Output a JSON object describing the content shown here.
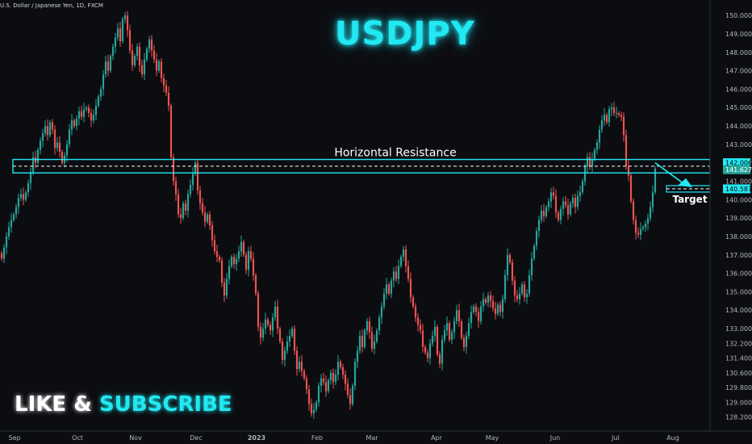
{
  "header": {
    "symbol_line": "U.S. Dollar / Japanese Yen, 1D, FXCM"
  },
  "brand": {
    "title": "USDJPY",
    "cta_like": "LIKE &",
    "cta_subscribe": "SUBSCRIBE"
  },
  "colors": {
    "background": "#0c0d11",
    "up": "#26a69a",
    "down": "#ef5350",
    "accent": "#22e8f2",
    "axis_text": "#b2b5be"
  },
  "chart_data": {
    "type": "candlestick",
    "ylim": [
      127.7,
      150.4
    ],
    "y_ticks": [
      150.0,
      149.0,
      148.0,
      147.0,
      146.0,
      145.0,
      144.0,
      143.0,
      142.0,
      141.0,
      140.0,
      139.0,
      138.0,
      137.0,
      136.0,
      135.0,
      134.0,
      133.0,
      132.2,
      131.4,
      130.6,
      129.8,
      129.0,
      128.2
    ],
    "x_ticks": [
      "Sep",
      "Oct",
      "Nov",
      "Dec",
      "2023",
      "Feb",
      "Mar",
      "Apr",
      "May",
      "Jun",
      "Jul",
      "Aug"
    ],
    "price_labels": {
      "upper": "142.006",
      "lower": "141.627",
      "target": "140.587"
    },
    "annotations": {
      "resistance_label": "Horizontal Resistance",
      "target_label": "Target"
    },
    "levels": {
      "zone_top": 142.006,
      "zone_bottom": 141.627,
      "target": 140.587
    },
    "closes": [
      136.8,
      137.4,
      138.0,
      138.5,
      138.9,
      139.2,
      139.6,
      140.1,
      140.3,
      140.0,
      140.4,
      140.9,
      141.5,
      142.3,
      142.0,
      142.7,
      143.2,
      143.6,
      144.0,
      143.5,
      144.2,
      143.8,
      142.8,
      143.1,
      142.6,
      142.0,
      142.4,
      143.0,
      143.8,
      144.3,
      144.0,
      144.4,
      144.8,
      144.5,
      144.9,
      145.0,
      144.7,
      144.3,
      144.6,
      145.1,
      145.6,
      146.0,
      146.8,
      147.5,
      147.0,
      147.8,
      148.3,
      148.8,
      149.3,
      148.6,
      149.8,
      150.0,
      149.2,
      148.1,
      147.3,
      147.8,
      148.3,
      147.3,
      146.8,
      147.6,
      148.2,
      148.7,
      148.1,
      147.6,
      147.0,
      147.5,
      146.6,
      146.2,
      145.8,
      145.1,
      142.3,
      141.0,
      140.3,
      139.2,
      139.0,
      139.8,
      139.4,
      140.3,
      140.8,
      141.4,
      142.0,
      140.5,
      139.8,
      139.3,
      138.8,
      139.2,
      138.6,
      137.8,
      137.2,
      136.9,
      136.7,
      135.5,
      134.8,
      135.7,
      136.4,
      136.9,
      136.5,
      136.8,
      137.2,
      137.7,
      137.0,
      136.2,
      137.2,
      136.8,
      135.9,
      134.9,
      133.1,
      132.5,
      133.0,
      133.5,
      133.2,
      132.9,
      133.6,
      134.2,
      133.0,
      132.3,
      131.3,
      131.8,
      132.3,
      132.6,
      133.0,
      131.8,
      130.8,
      131.2,
      130.7,
      130.3,
      129.7,
      128.9,
      128.4,
      128.6,
      129.0,
      129.9,
      130.3,
      130.1,
      129.6,
      130.2,
      130.6,
      130.1,
      130.5,
      131.2,
      130.9,
      130.5,
      130.0,
      129.4,
      128.9,
      129.9,
      131.2,
      131.8,
      132.6,
      132.0,
      132.9,
      133.4,
      132.8,
      131.9,
      132.3,
      132.9,
      133.6,
      134.2,
      134.9,
      135.4,
      134.9,
      135.6,
      136.1,
      135.7,
      136.4,
      136.9,
      137.3,
      136.4,
      135.7,
      134.7,
      134.2,
      133.6,
      133.2,
      132.9,
      132.0,
      131.7,
      131.4,
      132.2,
      132.6,
      133.1,
      131.6,
      131.1,
      132.4,
      132.9,
      133.3,
      132.4,
      132.8,
      133.4,
      134.0,
      133.4,
      132.5,
      132.0,
      132.6,
      133.3,
      133.9,
      134.2,
      133.9,
      133.4,
      134.2,
      134.6,
      134.4,
      134.8,
      134.5,
      134.1,
      133.8,
      134.3,
      133.9,
      134.6,
      135.9,
      137.0,
      136.6,
      135.6,
      134.8,
      134.6,
      134.9,
      135.4,
      134.7,
      134.9,
      135.9,
      136.8,
      137.5,
      138.3,
      138.9,
      139.4,
      139.1,
      139.6,
      139.9,
      140.4,
      140.2,
      139.3,
      138.9,
      139.5,
      139.9,
      139.7,
      139.2,
      139.8,
      140.1,
      139.6,
      140.2,
      140.4,
      141.0,
      141.8,
      142.3,
      141.8,
      142.2,
      142.7,
      143.1,
      143.8,
      144.3,
      144.6,
      144.2,
      144.9,
      145.0,
      144.7,
      144.7,
      144.6,
      144.5,
      143.5,
      141.8,
      141.3,
      139.9,
      138.9,
      138.2,
      138.1,
      138.4,
      138.5,
      138.7,
      139.0,
      139.6,
      140.4,
      141.7
    ]
  }
}
